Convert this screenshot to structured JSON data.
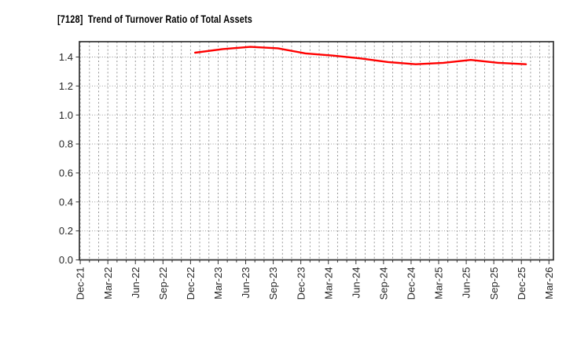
{
  "chart_data": {
    "type": "line",
    "title": "[7128]  Trend of Turnover Ratio of Total Assets",
    "xlabel": "",
    "ylabel": "",
    "legend": "none",
    "grid": "dotted, monthly vertical minors, 0.2-step horizontal",
    "ylim": [
      0.0,
      1.505
    ],
    "y_tick_labels": [
      "0.0",
      "0.2",
      "0.4",
      "0.6",
      "0.8",
      "1.0",
      "1.2",
      "1.4"
    ],
    "y_tick_values": [
      0.0,
      0.2,
      0.4,
      0.6,
      0.8,
      1.0,
      1.2,
      1.4
    ],
    "x_tick_labels": [
      "Dec-21",
      "Mar-22",
      "Jun-22",
      "Sep-22",
      "Dec-22",
      "Mar-23",
      "Jun-23",
      "Sep-23",
      "Dec-23",
      "Mar-24",
      "Jun-24",
      "Sep-24",
      "Dec-24",
      "Mar-25",
      "Jun-25",
      "Sep-25",
      "Dec-25",
      "Mar-26"
    ],
    "series": [
      {
        "name": "Turnover Ratio of Total Assets",
        "color": "#ff0000",
        "points": [
          {
            "date": "Dec-22",
            "value": 1.43
          },
          {
            "date": "Mar-23",
            "value": 1.455
          },
          {
            "date": "Jun-23",
            "value": 1.47
          },
          {
            "date": "Sep-23",
            "value": 1.46
          },
          {
            "date": "Dec-23",
            "value": 1.425
          },
          {
            "date": "Mar-24",
            "value": 1.41
          },
          {
            "date": "Jun-24",
            "value": 1.39
          },
          {
            "date": "Sep-24",
            "value": 1.365
          },
          {
            "date": "Dec-24",
            "value": 1.35
          },
          {
            "date": "Mar-25",
            "value": 1.36
          },
          {
            "date": "Jun-25",
            "value": 1.38
          },
          {
            "date": "Sep-25",
            "value": 1.36
          },
          {
            "date": "Dec-25",
            "value": 1.35
          }
        ]
      }
    ],
    "colors": {
      "line": "#ff0000",
      "grid": "#8c8c8c",
      "spine": "#333333",
      "tick_text": "#262626",
      "background": "#ffffff"
    }
  }
}
